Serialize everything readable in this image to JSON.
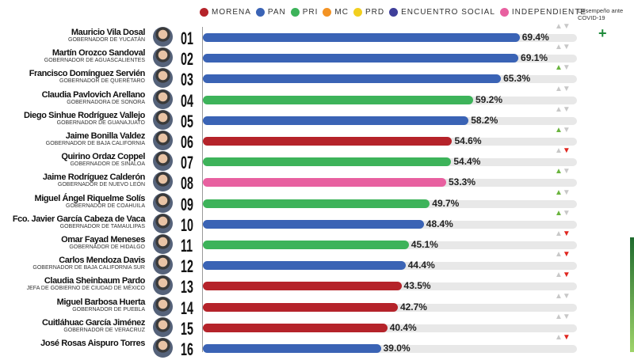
{
  "legend": [
    {
      "label": "MORENA",
      "color": "#b5232a"
    },
    {
      "label": "PAN",
      "color": "#3a63b5"
    },
    {
      "label": "PRI",
      "color": "#3db35a"
    },
    {
      "label": "MC",
      "color": "#f39324"
    },
    {
      "label": "PRD",
      "color": "#f2cf1f"
    },
    {
      "label": "ENCUENTRO SOCIAL",
      "color": "#3f3f9a"
    },
    {
      "label": "INDEPENDIENTE",
      "color": "#e860a0"
    }
  ],
  "covid_label": "Desempeño ante COVID-19",
  "plus_symbol": "+",
  "chart_data": {
    "type": "bar",
    "orientation": "horizontal",
    "xlim": [
      0,
      100
    ],
    "rows": [
      {
        "rank": "01",
        "name": "Mauricio Vila Dosal",
        "title": "GOBERNADOR DE YUCATÁN",
        "party": "PAN",
        "value": 69.4,
        "label": "69.4%",
        "trend": "neutral"
      },
      {
        "rank": "02",
        "name": "Martín Orozco Sandoval",
        "title": "GOBERNADOR DE AGUASCALIENTES",
        "party": "PAN",
        "value": 69.1,
        "label": "69.1%",
        "trend": "neutral"
      },
      {
        "rank": "03",
        "name": "Francisco Domínguez Servién",
        "title": "GOBERNADOR DE QUERÉTARO",
        "party": "PAN",
        "value": 65.3,
        "label": "65.3%",
        "trend": "up"
      },
      {
        "rank": "04",
        "name": "Claudia Pavlovich Arellano",
        "title": "GOBERNADORA DE SONORA",
        "party": "PRI",
        "value": 59.2,
        "label": "59.2%",
        "trend": "neutral"
      },
      {
        "rank": "05",
        "name": "Diego Sinhue Rodríguez Vallejo",
        "title": "GOBERNADOR DE GUANAJUATO",
        "party": "PAN",
        "value": 58.2,
        "label": "58.2%",
        "trend": "neutral"
      },
      {
        "rank": "06",
        "name": "Jaime Bonilla Valdez",
        "title": "GOBERNADOR DE BAJA CALIFORNIA",
        "party": "MORENA",
        "value": 54.6,
        "label": "54.6%",
        "trend": "up"
      },
      {
        "rank": "07",
        "name": "Quirino Ordaz Coppel",
        "title": "GOBERNADOR DE SINALOA",
        "party": "PRI",
        "value": 54.4,
        "label": "54.4%",
        "trend": "down"
      },
      {
        "rank": "08",
        "name": "Jaime Rodríguez Calderón",
        "title": "GOBERNADOR DE NUEVO LEÓN",
        "party": "INDEPENDIENTE",
        "value": 53.3,
        "label": "53.3%",
        "trend": "up"
      },
      {
        "rank": "09",
        "name": "Miguel Ángel Riquelme Solís",
        "title": "GOBERNADOR DE COAHUILA",
        "party": "PRI",
        "value": 49.7,
        "label": "49.7%",
        "trend": "up"
      },
      {
        "rank": "10",
        "name": "Fco. Javier García Cabeza de Vaca",
        "title": "GOBERNADOR DE TAMAULIPAS",
        "party": "PAN",
        "value": 48.4,
        "label": "48.4%",
        "trend": "up"
      },
      {
        "rank": "11",
        "name": "Omar Fayad Meneses",
        "title": "GOBERNADOR DE HIDALGO",
        "party": "PRI",
        "value": 45.1,
        "label": "45.1%",
        "trend": "down"
      },
      {
        "rank": "12",
        "name": "Carlos Mendoza Davis",
        "title": "GOBERNADOR DE BAJA CALIFORNIA SUR",
        "party": "PAN",
        "value": 44.4,
        "label": "44.4%",
        "trend": "down"
      },
      {
        "rank": "13",
        "name": "Claudia Sheinbaum Pardo",
        "title": "JEFA DE GOBIERNO DE CIUDAD DE MÉXICO",
        "party": "MORENA",
        "value": 43.5,
        "label": "43.5%",
        "trend": "down"
      },
      {
        "rank": "14",
        "name": "Miguel Barbosa Huerta",
        "title": "GOBERNADOR DE PUEBLA",
        "party": "MORENA",
        "value": 42.7,
        "label": "42.7%",
        "trend": "neutral"
      },
      {
        "rank": "15",
        "name": "Cuitláhuac García Jiménez",
        "title": "GOBERNADOR DE VERACRUZ",
        "party": "MORENA",
        "value": 40.4,
        "label": "40.4%",
        "trend": "neutral"
      },
      {
        "rank": "16",
        "name": "José Rosas Aispuro Torres",
        "title": "",
        "party": "PAN",
        "value": 39.0,
        "label": "39.0%",
        "trend": "down"
      }
    ]
  }
}
